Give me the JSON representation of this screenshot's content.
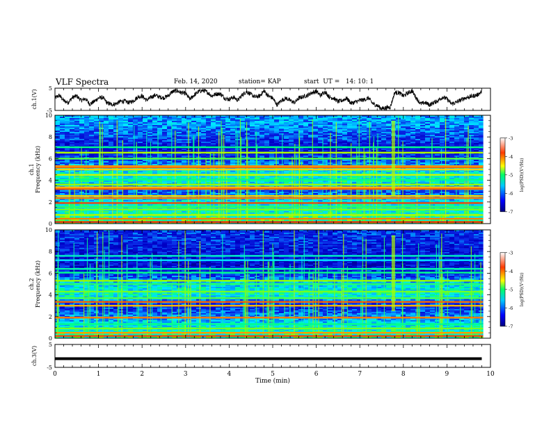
{
  "header": {
    "title": "VLF Spectra",
    "date": "Feb. 14, 2020",
    "station": "station= KAP",
    "start": "start  UT =   14: 10: 1"
  },
  "colors": {
    "background": "#ffffff",
    "axis": "#000000",
    "spectrogram_low": "#1a2a8c",
    "spectrogram_mid": "#2ee0ff",
    "spectrogram_high": "#ff3a10"
  },
  "chart_data": [
    {
      "type": "line",
      "panel": "ch1-waveform",
      "ylabel": "ch.1(V)",
      "ylim": [
        -5,
        5
      ],
      "yticks": [
        "5",
        "-5"
      ],
      "xlim": [
        0,
        10
      ],
      "x": [
        0,
        0.1,
        0.2,
        0.3,
        0.4,
        0.5,
        0.6,
        0.7,
        0.8,
        0.9,
        1.0,
        1.1,
        1.2,
        1.3,
        1.4,
        1.5,
        1.6,
        1.7,
        1.8,
        1.9,
        2.0,
        2.1,
        2.2,
        2.3,
        2.4,
        2.5,
        2.6,
        2.7,
        2.8,
        2.9,
        3.0,
        3.1,
        3.2,
        3.3,
        3.4,
        3.5,
        3.6,
        3.7,
        3.8,
        3.9,
        4.0,
        4.1,
        4.2,
        4.3,
        4.4,
        4.5,
        4.6,
        4.7,
        4.8,
        4.9,
        5.0,
        5.1,
        5.2,
        5.3,
        5.4,
        5.5,
        5.6,
        5.7,
        5.8,
        5.9,
        6.0,
        6.1,
        6.2,
        6.3,
        6.4,
        6.5,
        6.6,
        6.7,
        6.8,
        6.9,
        7.0,
        7.1,
        7.2,
        7.3,
        7.4,
        7.5,
        7.6,
        7.7,
        7.8,
        7.9,
        8.0,
        8.1,
        8.2,
        8.3,
        8.4,
        8.5,
        8.6,
        8.7,
        8.8,
        8.9,
        9.0,
        9.1,
        9.2,
        9.3,
        9.4,
        9.5,
        9.6,
        9.7,
        9.8
      ],
      "y": [
        0.5,
        1.8,
        -0.6,
        -1.5,
        0.8,
        1.5,
        -0.5,
        0.3,
        -2.2,
        -1.0,
        0.6,
        0.8,
        -1.7,
        -2.3,
        -2.0,
        -1.0,
        -0.8,
        -1.5,
        -0.7,
        1.0,
        1.5,
        -0.4,
        0.8,
        1.9,
        1.0,
        0.7,
        1.6,
        3.5,
        3.8,
        3.0,
        2.6,
        0.0,
        2.0,
        3.5,
        4.0,
        3.2,
        1.5,
        2.4,
        2.5,
        0.5,
        0.0,
        1.0,
        -0.5,
        2.0,
        3.5,
        2.2,
        1.0,
        1.5,
        3.8,
        1.5,
        0.5,
        -2.5,
        -0.5,
        0.5,
        -0.5,
        -1.5,
        0.5,
        1.2,
        1.8,
        3.0,
        3.5,
        1.7,
        3.5,
        1.0,
        0.5,
        -1.0,
        -0.5,
        0.5,
        -1.8,
        -1.2,
        -0.5,
        -0.2,
        0.6,
        -2.0,
        -2.8,
        -4.2,
        -3.8,
        -3.5,
        3.0,
        3.0,
        1.5,
        2.8,
        3.8,
        0.5,
        -2.0,
        -1.5,
        -2.5,
        -1.5,
        -0.5,
        1.0,
        0.2,
        -2.0,
        -1.5,
        -0.5,
        0.5,
        1.0,
        1.5,
        2.0,
        3.5
      ]
    },
    {
      "type": "heatmap",
      "panel": "ch1-spectrogram",
      "ylabel": "ch.1\nFrequency (kHz)",
      "ylabel_lines": [
        "ch.1",
        "Frequency (kHz)"
      ],
      "ylim": [
        0,
        10
      ],
      "yticks": [
        "0",
        "2",
        "4",
        "6",
        "8",
        "10"
      ],
      "xlim": [
        0,
        10
      ],
      "colorbar": {
        "label": "log(PSD)(V²/Hz)",
        "range": [
          -7,
          -3
        ],
        "ticks": [
          "-3",
          "-4",
          "-5",
          "-6",
          "-7"
        ]
      },
      "bands_khz": [
        {
          "f": 0.15,
          "level": -3.3
        },
        {
          "f": 0.45,
          "level": -3.6
        },
        {
          "f": 0.8,
          "level": -4.3
        },
        {
          "f": 1.3,
          "level": -4.5
        },
        {
          "f": 1.55,
          "level": -4.7
        },
        {
          "f": 1.9,
          "level": -3.4
        },
        {
          "f": 2.35,
          "level": -3.6
        },
        {
          "f": 2.55,
          "level": -3.9
        },
        {
          "f": 3.2,
          "level": -3.5
        },
        {
          "f": 3.35,
          "level": -3.8
        },
        {
          "f": 3.6,
          "level": -4.4
        },
        {
          "f": 4.05,
          "level": -4.8
        },
        {
          "f": 4.5,
          "level": -4.2
        },
        {
          "f": 5.0,
          "level": -3.9
        },
        {
          "f": 5.2,
          "level": -3.5
        },
        {
          "f": 5.3,
          "level": -3.7
        },
        {
          "f": 6.0,
          "level": -4.6
        },
        {
          "f": 6.55,
          "level": -4.3
        },
        {
          "f": 7.05,
          "level": -4.8
        }
      ],
      "background_profile": [
        {
          "f": 0,
          "level": -4.6
        },
        {
          "f": 1,
          "level": -5.0
        },
        {
          "f": 2,
          "level": -5.2
        },
        {
          "f": 3,
          "level": -5.9
        },
        {
          "f": 4,
          "level": -5.0
        },
        {
          "f": 5,
          "level": -5.2
        },
        {
          "f": 6,
          "level": -6.0
        },
        {
          "f": 7,
          "level": -6.3
        },
        {
          "f": 8,
          "level": -5.9
        },
        {
          "f": 9,
          "level": -5.6
        },
        {
          "f": 10,
          "level": -5.5
        }
      ]
    },
    {
      "type": "heatmap",
      "panel": "ch2-spectrogram",
      "ylabel": "ch.2\nFrequency (kHz)",
      "ylabel_lines": [
        "ch.2",
        "Frequency (kHz)"
      ],
      "ylim": [
        0,
        10
      ],
      "yticks": [
        "0",
        "2",
        "4",
        "6",
        "8",
        "10"
      ],
      "xlim": [
        0,
        10
      ],
      "colorbar": {
        "label": "log(PSD)(V²/Hz)",
        "range": [
          -7,
          -3
        ],
        "ticks": [
          "-3",
          "-4",
          "-5",
          "-6",
          "-7"
        ]
      },
      "bands_khz": [
        {
          "f": 0.2,
          "level": -3.4
        },
        {
          "f": 0.5,
          "level": -3.7
        },
        {
          "f": 0.9,
          "level": -4.5
        },
        {
          "f": 1.3,
          "level": -4.8
        },
        {
          "f": 1.9,
          "level": -3.6
        },
        {
          "f": 3.0,
          "level": -3.8
        },
        {
          "f": 3.35,
          "level": -3.5
        },
        {
          "f": 3.7,
          "level": -4.6
        },
        {
          "f": 4.3,
          "level": -4.5
        },
        {
          "f": 5.0,
          "level": -4.7
        },
        {
          "f": 5.3,
          "level": -4.4
        },
        {
          "f": 6.05,
          "level": -4.8
        },
        {
          "f": 6.4,
          "level": -4.9
        },
        {
          "f": 7.2,
          "level": -5.2
        },
        {
          "f": 7.6,
          "level": -5.0
        }
      ],
      "background_profile": [
        {
          "f": 0,
          "level": -4.8
        },
        {
          "f": 1,
          "level": -5.1
        },
        {
          "f": 2,
          "level": -5.6
        },
        {
          "f": 3,
          "level": -6.2
        },
        {
          "f": 4,
          "level": -5.0
        },
        {
          "f": 5,
          "level": -5.3
        },
        {
          "f": 6,
          "level": -6.1
        },
        {
          "f": 7,
          "level": -6.4
        },
        {
          "f": 8,
          "level": -6.2
        },
        {
          "f": 9,
          "level": -6.1
        },
        {
          "f": 10,
          "level": -6.0
        }
      ]
    },
    {
      "type": "line",
      "panel": "ch3-waveform",
      "ylabel": "ch.3(V)",
      "ylim": [
        -5,
        5
      ],
      "yticks": [
        "5",
        "-5"
      ],
      "xlim": [
        0,
        10
      ],
      "xlabel": "Time (min)",
      "xticks": [
        "0",
        "1",
        "2",
        "3",
        "4",
        "5",
        "6",
        "7",
        "8",
        "9",
        "10"
      ],
      "x": [
        0,
        9.8
      ],
      "y": [
        -1.2,
        -1.2
      ]
    }
  ]
}
